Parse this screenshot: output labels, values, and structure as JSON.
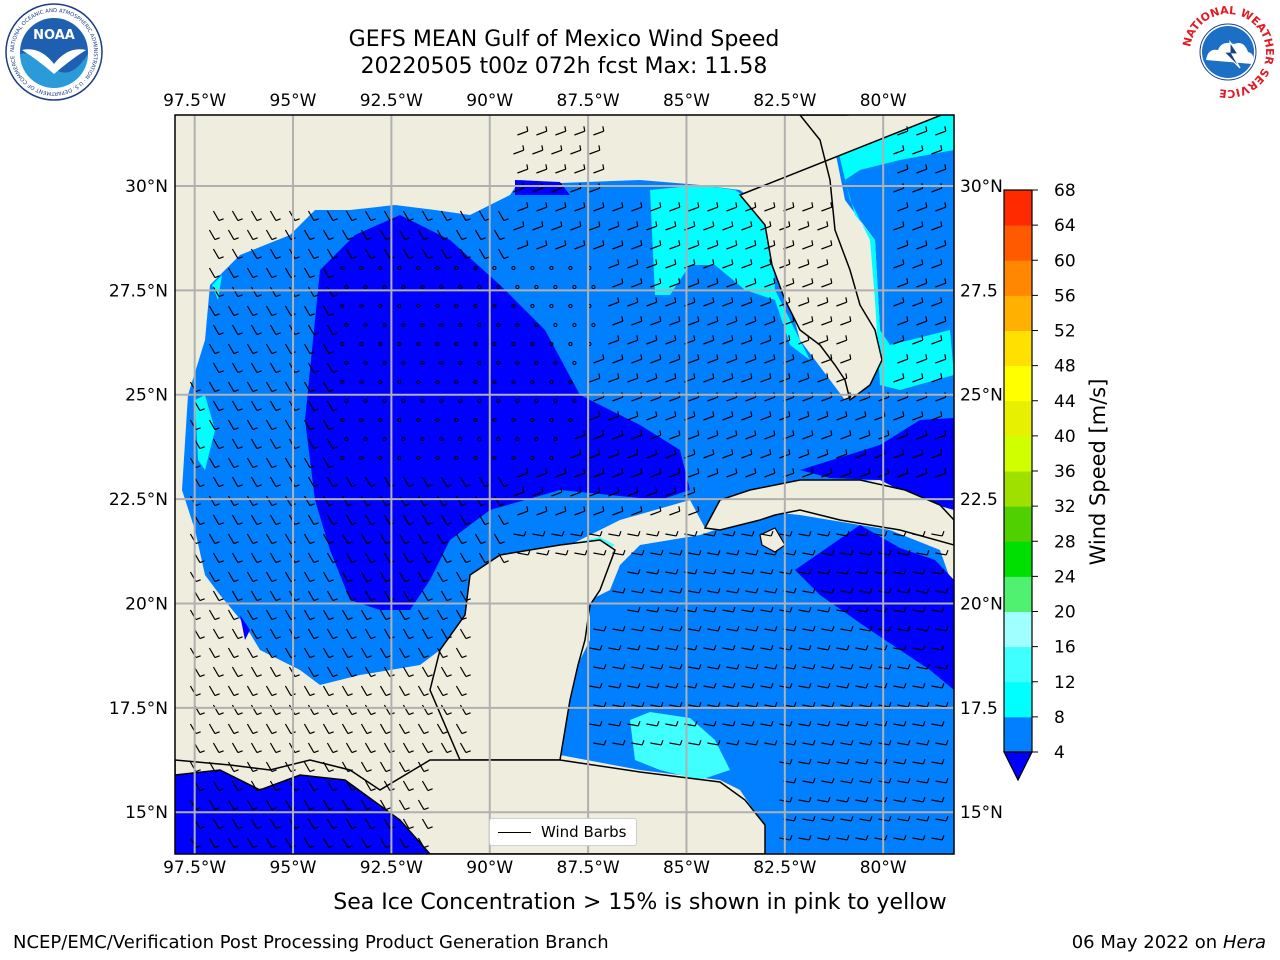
{
  "header": {
    "title_line1": "GEFS MEAN Gulf of Mexico Wind Speed",
    "title_line2": "20220505 t00z 072h fcst   Max: 11.58"
  },
  "logos": {
    "left": {
      "icon": "noaa-logo",
      "text": "NOAA",
      "ring_text": "NATIONAL OCEANIC AND ATMOSPHERIC ADMINISTRATION · U.S. DEPARTMENT OF COMMERCE"
    },
    "right": {
      "icon": "nws-logo",
      "ring_text": "NATIONAL WEATHER SERVICE"
    }
  },
  "map": {
    "lon_range": [
      -98.0,
      -78.2
    ],
    "lat_range": [
      14.0,
      31.7
    ],
    "lon_ticks": [
      "97.5°W",
      "95°W",
      "92.5°W",
      "90°W",
      "87.5°W",
      "85°W",
      "82.5°W",
      "80°W"
    ],
    "lat_ticks_left": [
      "30°N",
      "27.5°N",
      "25°N",
      "22.5°N",
      "20°N",
      "17.5°N",
      "15°N"
    ],
    "lat_ticks_right": [
      "30°N",
      "27.5",
      "25°N",
      "22.5",
      "20°N",
      "17.5",
      "15°N"
    ],
    "gridlines": true,
    "land_color": "#efedde",
    "field": "wind speed",
    "overlay": "wind barbs"
  },
  "colorbar": {
    "label": "Wind Speed [m/s]",
    "ticks": [
      "4",
      "8",
      "12",
      "16",
      "20",
      "24",
      "28",
      "32",
      "36",
      "40",
      "44",
      "48",
      "52",
      "56",
      "60",
      "64",
      "68"
    ],
    "colors": [
      "#0080ff",
      "#00ffff",
      "#40ffff",
      "#a0ffff",
      "#50f070",
      "#00e000",
      "#50d000",
      "#a0e000",
      "#d0ff00",
      "#e6f000",
      "#ffff00",
      "#ffe000",
      "#ffb000",
      "#ff8800",
      "#ff5a00",
      "#ff2a00"
    ],
    "extend_min_color": "#0000ff"
  },
  "legend": {
    "label": "Wind Barbs"
  },
  "subtitle": "Sea Ice Concentration > 15% is shown in pink to yellow",
  "footer": {
    "left": "NCEP/EMC/Verification Post Processing Product Generation Branch",
    "right_date": "06 May 2022 on",
    "right_system": "Hera"
  }
}
